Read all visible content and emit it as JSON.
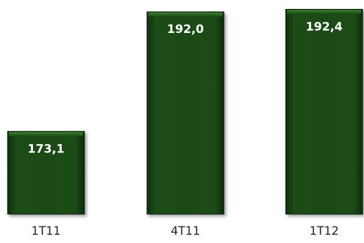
{
  "chart_data": {
    "type": "bar",
    "categories": [
      "1T11",
      "4T11",
      "1T12"
    ],
    "values": [
      173.1,
      192.0,
      192.4
    ],
    "data_labels": [
      "173,1",
      "192,0",
      "192,4"
    ],
    "title": "",
    "xlabel": "",
    "ylabel": "",
    "ylim": [
      160,
      193
    ],
    "grid": false,
    "legend": "none",
    "colors": {
      "bar_fill": "#1a4a14",
      "bar_dark": "#0f2f0c",
      "bar_light": "#2f6a26",
      "label_text": "#ffffff",
      "axis_text": "#222222"
    }
  }
}
